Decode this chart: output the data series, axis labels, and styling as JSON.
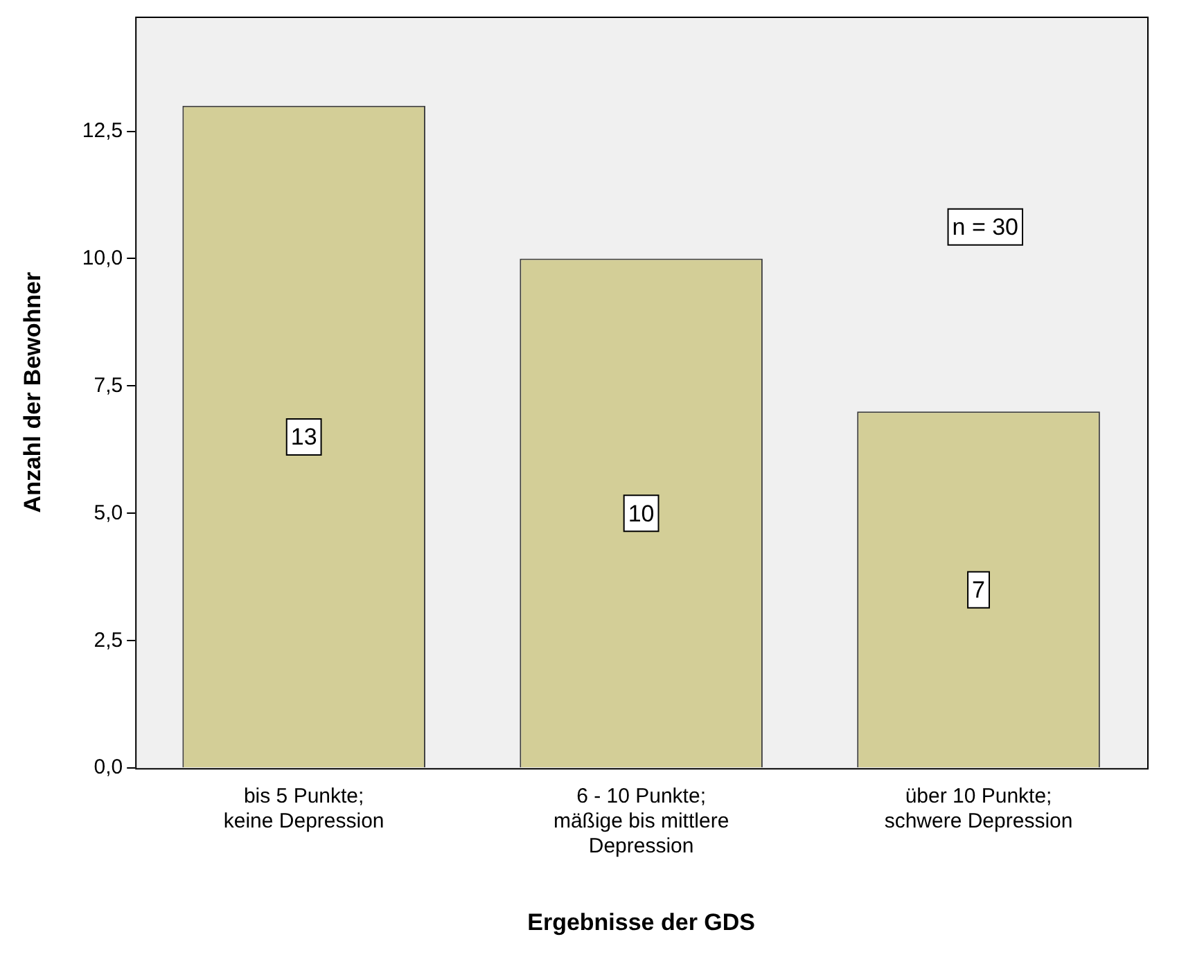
{
  "chart_data": {
    "type": "bar",
    "xlabel": "Ergebnisse der GDS",
    "ylabel": "Anzahl der Bewohner",
    "categories": [
      "bis 5 Punkte;\nkeine Depression",
      "6 - 10 Punkte;\nmäßige bis mittlere\nDepression",
      "über 10 Punkte;\nschwere Depression"
    ],
    "values": [
      13,
      10,
      7
    ],
    "color": "#d3ce97",
    "data_labels": true,
    "ylim": [
      0,
      14.75
    ],
    "yticks": [
      {
        "value": 0,
        "label": "0,0"
      },
      {
        "value": 2.5,
        "label": "2,5"
      },
      {
        "value": 5,
        "label": "5,0"
      },
      {
        "value": 7.5,
        "label": "7,5"
      },
      {
        "value": 10,
        "label": "10,0"
      },
      {
        "value": 12.5,
        "label": "12,5"
      }
    ],
    "annotations": [
      "n = 30"
    ],
    "grid": false,
    "legend": false
  }
}
